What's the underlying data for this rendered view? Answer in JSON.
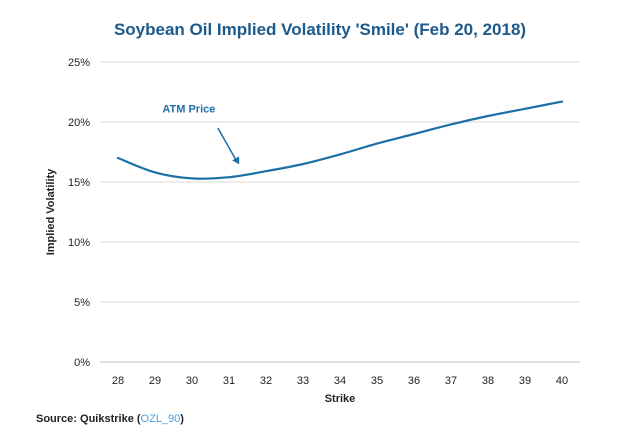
{
  "chart_data": {
    "type": "line",
    "title": "Soybean Oil Implied Volatility 'Smile' (Feb 20, 2018)",
    "xlabel": "Strike",
    "ylabel": "Implied Volatility",
    "x": [
      28,
      29,
      30,
      31,
      32,
      33,
      34,
      35,
      36,
      37,
      38,
      39,
      40
    ],
    "xticks": [
      "28",
      "29",
      "30",
      "31",
      "32",
      "33",
      "34",
      "35",
      "36",
      "37",
      "38",
      "39",
      "40"
    ],
    "yticks": [
      "0%",
      "5%",
      "10%",
      "15%",
      "20%",
      "25%"
    ],
    "ylim": [
      0,
      25
    ],
    "grid": true,
    "series": [
      {
        "values": [
          17.0,
          15.8,
          15.3,
          15.4,
          15.9,
          16.5,
          17.3,
          18.2,
          19.0,
          19.8,
          20.5,
          21.1,
          21.7
        ]
      }
    ],
    "annotations": [
      {
        "text": "ATM Price",
        "points_to_x": 31.6
      }
    ],
    "colors": {
      "line": "#1d6fa8",
      "title": "#1d5a8c",
      "grid": "#d9d9d9"
    }
  },
  "footer": {
    "source_label": "Source: Quikstrike (",
    "source_link": "OZL_90",
    "source_close": ")"
  }
}
